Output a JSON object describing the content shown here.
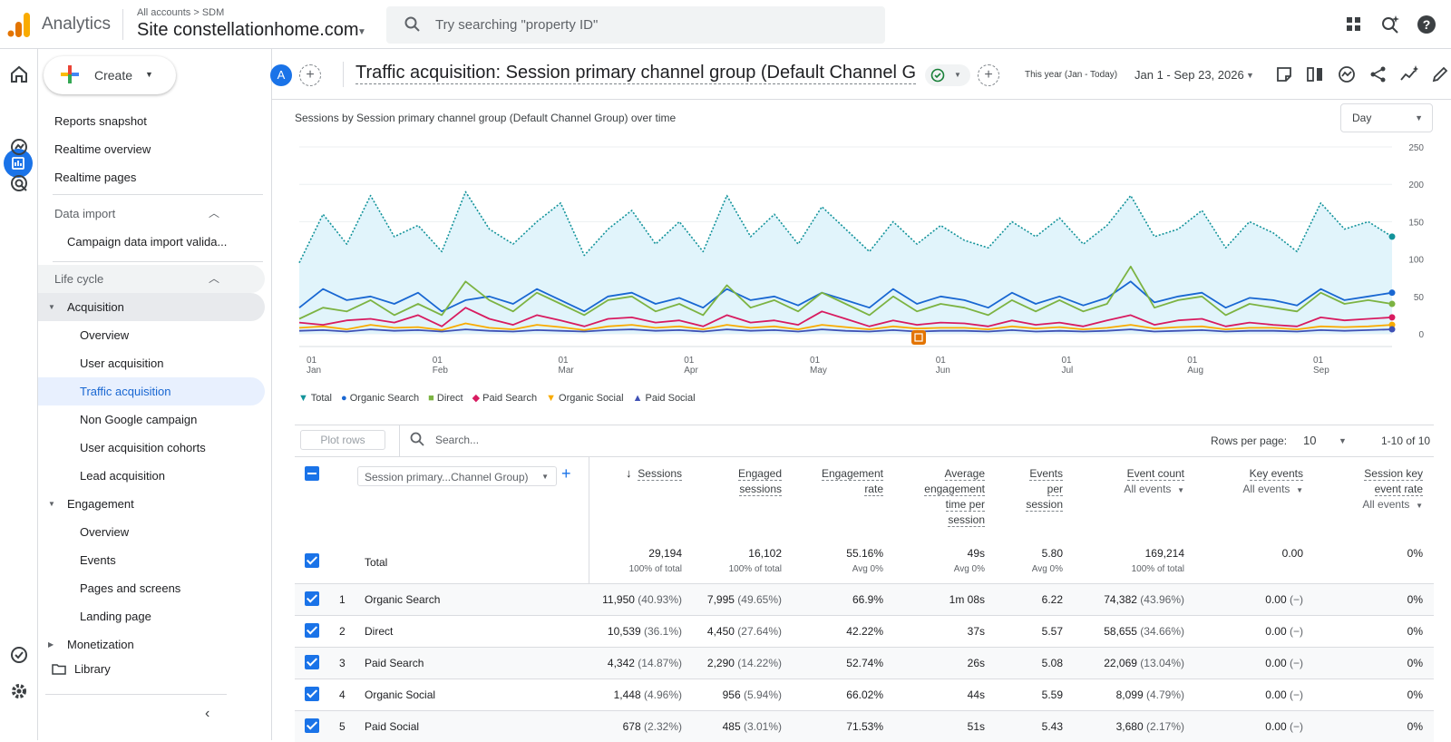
{
  "app": {
    "name": "Analytics",
    "breadcrumb": "All accounts > SDM",
    "property": "Site constellationhome.com",
    "search_placeholder": "Try searching \"property ID\""
  },
  "sidebar": {
    "create_label": "Create",
    "top_items": [
      "Reports snapshot",
      "Realtime overview",
      "Realtime pages"
    ],
    "data_import_label": "Data import",
    "data_import_items": [
      "Campaign data import valida..."
    ],
    "life_cycle_label": "Life cycle",
    "acquisition_label": "Acquisition",
    "acquisition_items": [
      "Overview",
      "User acquisition",
      "Traffic acquisition",
      "Non Google campaign",
      "User acquisition cohorts",
      "Lead acquisition"
    ],
    "engagement_label": "Engagement",
    "engagement_items": [
      "Overview",
      "Events",
      "Pages and screens",
      "Landing page"
    ],
    "monetization_label": "Monetization",
    "library_label": "Library"
  },
  "header": {
    "avatar_letter": "A",
    "title": "Traffic acquisition: Session primary channel group (Default Channel Gro...",
    "date_label": "This year (Jan - Today)",
    "date_range": "Jan 1 - Sep 23, 2026"
  },
  "chart": {
    "title": "Sessions by Session primary channel group (Default Channel Group) over time",
    "granularity": "Day"
  },
  "chart_data": {
    "type": "line",
    "title": "Sessions by Session primary channel group (Default Channel Group) over time",
    "x_ticks": [
      {
        "top": "01",
        "bottom": "Jan"
      },
      {
        "top": "01",
        "bottom": "Feb"
      },
      {
        "top": "01",
        "bottom": "Mar"
      },
      {
        "top": "01",
        "bottom": "Apr"
      },
      {
        "top": "01",
        "bottom": "May"
      },
      {
        "top": "01",
        "bottom": "Jun"
      },
      {
        "top": "01",
        "bottom": "Jul"
      },
      {
        "top": "01",
        "bottom": "Aug"
      },
      {
        "top": "01",
        "bottom": "Sep"
      }
    ],
    "y_ticks": [
      "250",
      "200",
      "150",
      "100",
      "50",
      "0"
    ],
    "ylim": [
      0,
      250
    ],
    "y_axis_side": "right",
    "grid": true,
    "legend_position": "bottom-left",
    "series": [
      {
        "name": "Total",
        "color": "#12939a",
        "style": "dotted",
        "fill": "#e1f4fb",
        "values": [
          95,
          160,
          120,
          185,
          130,
          145,
          110,
          190,
          140,
          120,
          150,
          175,
          105,
          140,
          165,
          120,
          150,
          110,
          185,
          130,
          160,
          120,
          170,
          140,
          110,
          150,
          120,
          145,
          125,
          115,
          150,
          130,
          155,
          120,
          145,
          185,
          130,
          140,
          165,
          115,
          150,
          135,
          110,
          175,
          140,
          150,
          130
        ]
      },
      {
        "name": "Organic Search",
        "color": "#1967d2",
        "style": "solid",
        "values": [
          35,
          60,
          45,
          50,
          40,
          55,
          30,
          45,
          50,
          40,
          60,
          45,
          30,
          50,
          55,
          40,
          48,
          35,
          60,
          45,
          50,
          38,
          55,
          45,
          35,
          60,
          40,
          50,
          45,
          35,
          55,
          40,
          50,
          38,
          48,
          70,
          42,
          50,
          55,
          35,
          48,
          45,
          38,
          60,
          45,
          50,
          55
        ]
      },
      {
        "name": "Direct",
        "color": "#7cb342",
        "style": "solid",
        "values": [
          20,
          35,
          30,
          45,
          25,
          40,
          25,
          70,
          45,
          30,
          55,
          40,
          25,
          45,
          50,
          30,
          40,
          25,
          65,
          35,
          45,
          30,
          55,
          40,
          25,
          50,
          30,
          40,
          35,
          25,
          45,
          30,
          45,
          30,
          40,
          90,
          35,
          45,
          50,
          25,
          40,
          35,
          30,
          55,
          40,
          45,
          40
        ]
      },
      {
        "name": "Paid Search",
        "color": "#d81b60",
        "style": "solid",
        "values": [
          15,
          12,
          18,
          20,
          15,
          25,
          10,
          35,
          20,
          12,
          25,
          18,
          10,
          20,
          22,
          15,
          18,
          10,
          25,
          15,
          18,
          12,
          30,
          20,
          10,
          18,
          12,
          15,
          14,
          10,
          18,
          12,
          15,
          10,
          18,
          25,
          12,
          18,
          20,
          10,
          15,
          12,
          10,
          22,
          18,
          20,
          22
        ]
      },
      {
        "name": "Organic Social",
        "color": "#f9ab00",
        "style": "solid",
        "values": [
          8,
          10,
          6,
          12,
          8,
          9,
          5,
          14,
          8,
          6,
          12,
          9,
          5,
          10,
          12,
          8,
          10,
          6,
          12,
          8,
          10,
          6,
          12,
          9,
          6,
          10,
          7,
          8,
          8,
          6,
          10,
          7,
          9,
          6,
          8,
          12,
          7,
          9,
          10,
          6,
          8,
          8,
          6,
          10,
          9,
          10,
          12
        ]
      },
      {
        "name": "Paid Social",
        "color": "#3f51b5",
        "style": "solid",
        "values": [
          4,
          5,
          3,
          6,
          4,
          5,
          3,
          6,
          4,
          3,
          5,
          4,
          3,
          5,
          6,
          4,
          5,
          3,
          6,
          4,
          5,
          3,
          6,
          4,
          3,
          5,
          3,
          4,
          4,
          3,
          5,
          3,
          4,
          3,
          4,
          6,
          3,
          4,
          5,
          3,
          4,
          4,
          3,
          5,
          4,
          5,
          6
        ]
      }
    ]
  },
  "table": {
    "plot_rows_label": "Plot rows",
    "search_placeholder": "Search...",
    "rows_per_page_label": "Rows per page:",
    "rows_per_page": "10",
    "range": "1-10 of 10",
    "dimension_label": "Session primary...Channel Group)",
    "columns": [
      {
        "lines": [
          "Sessions"
        ],
        "sub": ""
      },
      {
        "lines": [
          "Engaged",
          "sessions"
        ],
        "sub": ""
      },
      {
        "lines": [
          "Engagement",
          "rate"
        ],
        "sub": ""
      },
      {
        "lines": [
          "Average",
          "engagement",
          "time per",
          "session"
        ],
        "sub": ""
      },
      {
        "lines": [
          "Events",
          "per",
          "session"
        ],
        "sub": ""
      },
      {
        "lines": [
          "Event count"
        ],
        "sub": "All events"
      },
      {
        "lines": [
          "Key events"
        ],
        "sub": "All events"
      },
      {
        "lines": [
          "Session key",
          "event rate"
        ],
        "sub": "All events"
      }
    ],
    "total_label": "Total",
    "totals": [
      {
        "value": "29,194",
        "sub": "100% of total"
      },
      {
        "value": "16,102",
        "sub": "100% of total"
      },
      {
        "value": "55.16%",
        "sub": "Avg 0%"
      },
      {
        "value": "49s",
        "sub": "Avg 0%"
      },
      {
        "value": "5.80",
        "sub": "Avg 0%"
      },
      {
        "value": "169,214",
        "sub": "100% of total"
      },
      {
        "value": "0.00",
        "sub": ""
      },
      {
        "value": "0%",
        "sub": ""
      }
    ],
    "rows": [
      {
        "n": "1",
        "name": "Organic Search",
        "cells": [
          [
            "11,950",
            "(40.93%)"
          ],
          [
            "7,995",
            "(49.65%)"
          ],
          [
            "66.9%",
            ""
          ],
          [
            "1m 08s",
            ""
          ],
          [
            "6.22",
            ""
          ],
          [
            "74,382",
            "(43.96%)"
          ],
          [
            "0.00",
            "(−)"
          ],
          [
            "0%",
            ""
          ]
        ]
      },
      {
        "n": "2",
        "name": "Direct",
        "cells": [
          [
            "10,539",
            "(36.1%)"
          ],
          [
            "4,450",
            "(27.64%)"
          ],
          [
            "42.22%",
            ""
          ],
          [
            "37s",
            ""
          ],
          [
            "5.57",
            ""
          ],
          [
            "58,655",
            "(34.66%)"
          ],
          [
            "0.00",
            "(−)"
          ],
          [
            "0%",
            ""
          ]
        ]
      },
      {
        "n": "3",
        "name": "Paid Search",
        "cells": [
          [
            "4,342",
            "(14.87%)"
          ],
          [
            "2,290",
            "(14.22%)"
          ],
          [
            "52.74%",
            ""
          ],
          [
            "26s",
            ""
          ],
          [
            "5.08",
            ""
          ],
          [
            "22,069",
            "(13.04%)"
          ],
          [
            "0.00",
            "(−)"
          ],
          [
            "0%",
            ""
          ]
        ]
      },
      {
        "n": "4",
        "name": "Organic Social",
        "cells": [
          [
            "1,448",
            "(4.96%)"
          ],
          [
            "956",
            "(5.94%)"
          ],
          [
            "66.02%",
            ""
          ],
          [
            "44s",
            ""
          ],
          [
            "5.59",
            ""
          ],
          [
            "8,099",
            "(4.79%)"
          ],
          [
            "0.00",
            "(−)"
          ],
          [
            "0%",
            ""
          ]
        ]
      },
      {
        "n": "5",
        "name": "Paid Social",
        "cells": [
          [
            "678",
            "(2.32%)"
          ],
          [
            "485",
            "(3.01%)"
          ],
          [
            "71.53%",
            ""
          ],
          [
            "51s",
            ""
          ],
          [
            "5.43",
            ""
          ],
          [
            "3,680",
            "(2.17%)"
          ],
          [
            "0.00",
            "(−)"
          ],
          [
            "0%",
            ""
          ]
        ]
      }
    ]
  },
  "colors": {
    "accent": "#1a73e8",
    "nav_highlight": "#e8f0fe",
    "group_bg": "#f1f3f4"
  }
}
